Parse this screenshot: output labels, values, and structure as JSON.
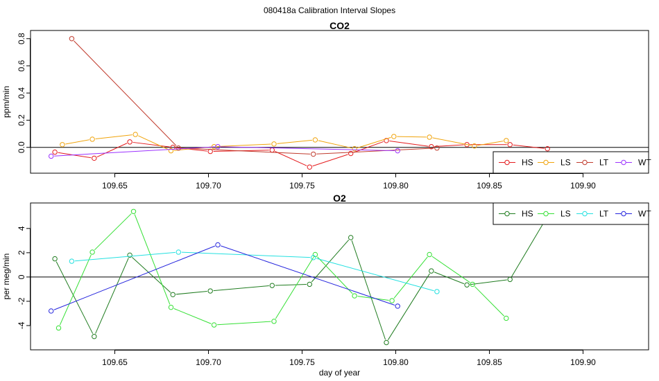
{
  "suptitle": "080418a   Calibration Interval Slopes",
  "chart_data": [
    {
      "type": "line",
      "title": "CO2",
      "xlabel": "",
      "ylabel": "ppm/min",
      "xlim": [
        109.605,
        109.935
      ],
      "ylim": [
        -0.19,
        0.86
      ],
      "xticks": [
        109.65,
        109.7,
        109.75,
        109.8,
        109.85,
        109.9
      ],
      "xtick_labels": [
        "109.65",
        "109.70",
        "109.75",
        "109.80",
        "109.85",
        "109.90"
      ],
      "yticks": [
        0.0,
        0.2,
        0.4,
        0.6,
        0.8
      ],
      "ytick_labels": [
        "0.0",
        "0.2",
        "0.4",
        "0.6",
        "0.8"
      ],
      "hline": 0,
      "legend_position": "bottom-right",
      "series": [
        {
          "name": "HS",
          "color": "#e41a1c",
          "x": [
            109.618,
            109.639,
            109.658,
            109.681,
            109.701,
            109.734,
            109.754,
            109.776,
            109.795,
            109.819,
            109.838,
            109.861,
            109.881
          ],
          "y": [
            -0.035,
            -0.08,
            0.04,
            0.0,
            -0.03,
            -0.02,
            -0.145,
            -0.045,
            0.05,
            0.005,
            0.02,
            0.02,
            -0.01
          ]
        },
        {
          "name": "LS",
          "color": "#f0a30a",
          "x": [
            109.622,
            109.638,
            109.661,
            109.68,
            109.703,
            109.735,
            109.757,
            109.778,
            109.799,
            109.818,
            109.842,
            109.859
          ],
          "y": [
            0.02,
            0.06,
            0.095,
            -0.025,
            0.005,
            0.025,
            0.055,
            -0.01,
            0.08,
            0.075,
            0.01,
            0.05
          ]
        },
        {
          "name": "LT",
          "color": "#c0392b",
          "x": [
            109.627,
            109.684,
            109.756,
            109.822
          ],
          "y": [
            0.8,
            -0.005,
            -0.05,
            -0.005
          ]
        },
        {
          "name": "WT",
          "color": "#9b30ff",
          "x": [
            109.616,
            109.705,
            109.801
          ],
          "y": [
            -0.065,
            0.005,
            -0.025
          ]
        }
      ]
    },
    {
      "type": "line",
      "title": "O2",
      "xlabel": "day of year",
      "ylabel": "per meg/min",
      "xlim": [
        109.605,
        109.935
      ],
      "ylim": [
        -6.0,
        6.1
      ],
      "xticks": [
        109.65,
        109.7,
        109.75,
        109.8,
        109.85,
        109.9
      ],
      "xtick_labels": [
        "109.65",
        "109.70",
        "109.75",
        "109.80",
        "109.85",
        "109.90"
      ],
      "yticks": [
        -4,
        -2,
        0,
        2,
        4
      ],
      "ytick_labels": [
        "-4",
        "-2",
        "0",
        "2",
        "4"
      ],
      "hline": 0,
      "legend_position": "top-right",
      "series": [
        {
          "name": "HS",
          "color": "#1e7b1e",
          "x": [
            109.618,
            109.639,
            109.658,
            109.681,
            109.701,
            109.734,
            109.754,
            109.776,
            109.795,
            109.819,
            109.838,
            109.861,
            109.881
          ],
          "y": [
            1.5,
            -4.9,
            1.8,
            -1.45,
            -1.15,
            -0.7,
            -0.6,
            3.25,
            -5.4,
            0.5,
            -0.65,
            -0.2,
            5.0
          ]
        },
        {
          "name": "LS",
          "color": "#33e033",
          "x": [
            109.62,
            109.638,
            109.66,
            109.68,
            109.703,
            109.735,
            109.757,
            109.778,
            109.798,
            109.818,
            109.841,
            109.859
          ],
          "y": [
            -4.2,
            2.05,
            5.4,
            -2.5,
            -3.95,
            -3.65,
            1.85,
            -1.55,
            -1.95,
            1.85,
            -0.6,
            -3.4
          ]
        },
        {
          "name": "LT",
          "color": "#22e0e0",
          "x": [
            109.627,
            109.684,
            109.756,
            109.822
          ],
          "y": [
            1.3,
            2.05,
            1.6,
            -1.2
          ]
        },
        {
          "name": "WT",
          "color": "#2222dd",
          "x": [
            109.616,
            109.705,
            109.801
          ],
          "y": [
            -2.8,
            2.65,
            -2.4
          ]
        }
      ]
    }
  ]
}
